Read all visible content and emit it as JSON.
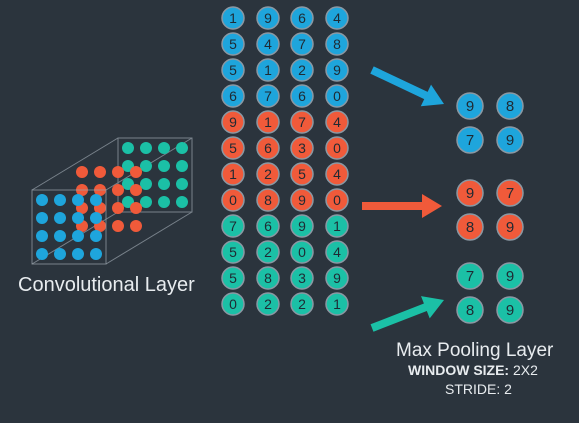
{
  "colors": {
    "background": "#2b343d",
    "blue": "#1ea5dc",
    "orange": "#f05a3a",
    "teal": "#1bc0a6",
    "circle_stroke": "#8a98a3",
    "text": "#e8ecef",
    "cube_edge": "#9aa4ad"
  },
  "conv_label": "Convolutional Layer",
  "pool_label": "Max Pooling Layer",
  "window_size_label": "WINDOW SIZE:",
  "window_size_value": "2X2",
  "stride_label": "STRIDE:",
  "stride_value": "2",
  "feature_maps": [
    {
      "name": "blue",
      "color_key": "blue",
      "rows": [
        [
          "1",
          "9",
          "6",
          "4"
        ],
        [
          "5",
          "4",
          "7",
          "8"
        ],
        [
          "5",
          "1",
          "2",
          "9"
        ],
        [
          "6",
          "7",
          "6",
          "0"
        ]
      ]
    },
    {
      "name": "orange",
      "color_key": "orange",
      "rows": [
        [
          "9",
          "1",
          "7",
          "4"
        ],
        [
          "5",
          "6",
          "3",
          "0"
        ],
        [
          "1",
          "2",
          "5",
          "4"
        ],
        [
          "0",
          "8",
          "9",
          "0"
        ]
      ]
    },
    {
      "name": "teal",
      "color_key": "teal",
      "rows": [
        [
          "7",
          "6",
          "9",
          "1"
        ],
        [
          "5",
          "2",
          "0",
          "4"
        ],
        [
          "5",
          "8",
          "3",
          "9"
        ],
        [
          "0",
          "2",
          "2",
          "1"
        ]
      ]
    }
  ],
  "pooled_maps": [
    {
      "name": "blue",
      "color_key": "blue",
      "rows": [
        [
          "9",
          "8"
        ],
        [
          "7",
          "9"
        ]
      ]
    },
    {
      "name": "orange",
      "color_key": "orange",
      "rows": [
        [
          "9",
          "7"
        ],
        [
          "8",
          "9"
        ]
      ]
    },
    {
      "name": "teal",
      "color_key": "teal",
      "rows": [
        [
          "7",
          "9"
        ],
        [
          "8",
          "9"
        ]
      ]
    }
  ]
}
